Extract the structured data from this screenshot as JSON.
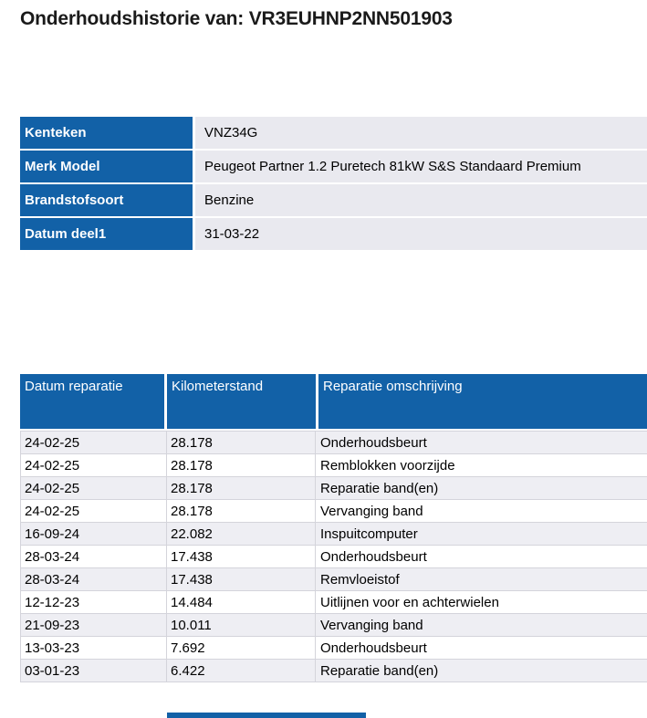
{
  "page": {
    "title": "Onderhoudshistorie van: VR3EUHNP2NN501903"
  },
  "vehicle_table": {
    "rows": [
      {
        "label": "Kenteken",
        "value": "VNZ34G"
      },
      {
        "label": "Merk Model",
        "value": "Peugeot Partner 1.2 Puretech 81kW S&S Standaard Premium"
      },
      {
        "label": "Brandstofsoort",
        "value": "Benzine"
      },
      {
        "label": "Datum deel1",
        "value": "31-03-22"
      }
    ]
  },
  "repairs_table": {
    "columns": [
      "Datum reparatie",
      "Kilometerstand",
      "Reparatie omschrijving"
    ],
    "rows": [
      [
        "24-02-25",
        "28.178",
        "Onderhoudsbeurt"
      ],
      [
        "24-02-25",
        "28.178",
        "Remblokken voorzijde"
      ],
      [
        "24-02-25",
        "28.178",
        "Reparatie band(en)"
      ],
      [
        "24-02-25",
        "28.178",
        "Vervanging band"
      ],
      [
        "16-09-24",
        "22.082",
        "Inspuitcomputer"
      ],
      [
        "28-03-24",
        "17.438",
        "Onderhoudsbeurt"
      ],
      [
        "28-03-24",
        "17.438",
        "Remvloeistof"
      ],
      [
        "12-12-23",
        "14.484",
        "Uitlijnen voor en achterwielen"
      ],
      [
        "21-09-23",
        "10.011",
        "Vervanging band"
      ],
      [
        "13-03-23",
        "7.692",
        "Onderhoudsbeurt"
      ],
      [
        "03-01-23",
        "6.422",
        "Reparatie band(en)"
      ]
    ]
  },
  "colors": {
    "header_blue": "#1261a7",
    "value_cell_bg": "#e9e9ef",
    "stripe_bg": "#eeeef3",
    "grid_line": "#d4d4db"
  }
}
